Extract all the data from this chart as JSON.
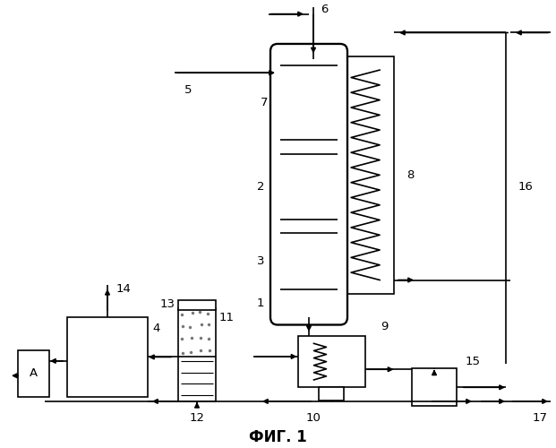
{
  "bg_color": "#ffffff",
  "lc": "#000000",
  "title": "ФИГ. 1",
  "title_fs": 12,
  "label_fs": 9.5
}
